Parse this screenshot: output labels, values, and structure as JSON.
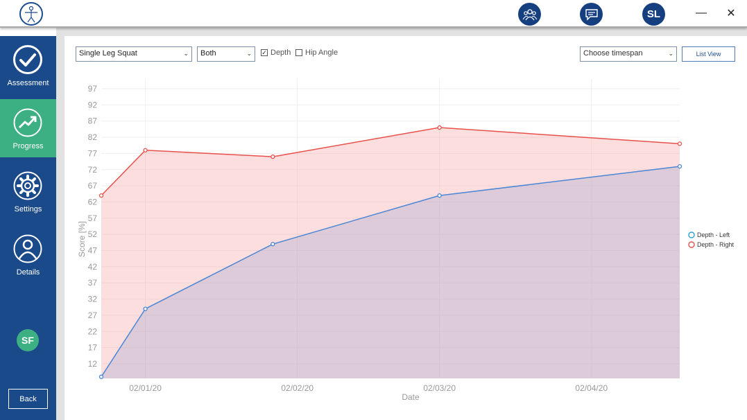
{
  "header": {
    "team_icon": "team-icon",
    "chat_icon": "chat-icon",
    "user_initials": "SL",
    "minimize_label": "—",
    "close_label": "✕"
  },
  "sidebar": {
    "items": [
      {
        "label": "Assessment",
        "icon": "check-circle-icon"
      },
      {
        "label": "Progress",
        "icon": "trend-up-icon",
        "active": true
      },
      {
        "label": "Settings",
        "icon": "gear-icon"
      },
      {
        "label": "Details",
        "icon": "person-icon"
      }
    ],
    "badge": "SF",
    "back_label": "Back"
  },
  "controls": {
    "exercise": "Single Leg Squat",
    "side": "Both",
    "depth_label": "Depth",
    "depth_checked": true,
    "hip_label": "Hip Angle",
    "hip_checked": false,
    "timespan_placeholder": "Choose timespan",
    "list_view_label": "List View"
  },
  "colors": {
    "accent_green": "#3db083",
    "sidebar_blue": "#1b4a8a",
    "left_series": "#4a86d6",
    "right_series": "#e8504a"
  },
  "chart_data": {
    "type": "area",
    "xlabel": "Date",
    "ylabel": "Score [%]",
    "yticks": [
      12,
      17,
      22,
      27,
      32,
      37,
      42,
      47,
      52,
      57,
      62,
      67,
      72,
      77,
      82,
      87,
      92,
      97
    ],
    "ylim": [
      7.5,
      100
    ],
    "x_ticks": [
      "02/01/20",
      "02/02/20",
      "02/03/20",
      "02/04/20"
    ],
    "x_tick_dates": [
      "2020-01-02",
      "2020-02-02",
      "2020-03-02",
      "2020-04-02"
    ],
    "xlim": [
      "2019-12-24",
      "2020-04-20"
    ],
    "legend_position": "right",
    "grid": true,
    "series": [
      {
        "name": "Depth - Left",
        "color": "#4a86d6",
        "fill": "rgba(160,170,210,0.35)",
        "points": [
          {
            "x": "2019-12-24",
            "y": 8
          },
          {
            "x": "2020-01-02",
            "y": 29
          },
          {
            "x": "2020-01-28",
            "y": 49
          },
          {
            "x": "2020-03-02",
            "y": 64
          },
          {
            "x": "2020-04-20",
            "y": 73
          }
        ]
      },
      {
        "name": "Depth - Right",
        "color": "#e8504a",
        "fill": "rgba(250,160,160,0.35)",
        "points": [
          {
            "x": "2019-12-24",
            "y": 64
          },
          {
            "x": "2020-01-02",
            "y": 78
          },
          {
            "x": "2020-01-28",
            "y": 76
          },
          {
            "x": "2020-03-02",
            "y": 85
          },
          {
            "x": "2020-04-20",
            "y": 80
          }
        ]
      }
    ]
  }
}
